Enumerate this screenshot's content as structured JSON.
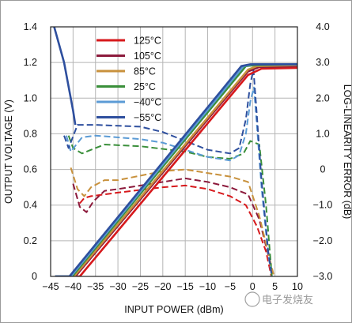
{
  "chart_data": {
    "type": "line",
    "xlabel": "INPUT POWER (dBm)",
    "ylabel": "OUTPUT VOLTAGE (V)",
    "y2label": "LOG-LINEARITY ERROR (dB)",
    "xlim": [
      -45,
      10
    ],
    "ylim": [
      0,
      1.4
    ],
    "y2lim": [
      -3.0,
      4.0
    ],
    "grid": true,
    "legend": "top-left",
    "x_ticks": [
      "−45",
      "−40",
      "−35",
      "−30",
      "−25",
      "−20",
      "−15",
      "−10",
      "−5",
      "0",
      "5",
      "10"
    ],
    "y_ticks": [
      "0",
      "0.2",
      "0.4",
      "0.6",
      "0.8",
      "1.0",
      "1.2",
      "1.4"
    ],
    "y2_ticks": [
      "−3.0",
      "−2.0",
      "−1.0",
      "0",
      "1.0",
      "2.0",
      "3.0",
      "4.0"
    ],
    "x_tick_values": [
      -45,
      -40,
      -35,
      -30,
      -25,
      -20,
      -15,
      -10,
      -5,
      0,
      5,
      10
    ],
    "y_tick_values": [
      0,
      0.2,
      0.4,
      0.6,
      0.8,
      1.0,
      1.2,
      1.4
    ],
    "y2_tick_values": [
      -3,
      -2,
      -1,
      0,
      1,
      2,
      3,
      4
    ],
    "series": [
      {
        "name": "125°C",
        "color": "#d7191c",
        "voltage": [
          [
            -44,
            0
          ],
          [
            -38.5,
            0
          ],
          [
            -1,
            1.13
          ],
          [
            2,
            1.165
          ],
          [
            10,
            1.17
          ]
        ],
        "error": [
          [
            -38.5,
            -0.95
          ],
          [
            -37.5,
            -0.8
          ],
          [
            -36,
            -0.75
          ],
          [
            -30,
            -0.65
          ],
          [
            -20,
            -0.5
          ],
          [
            -15,
            -0.45
          ],
          [
            -10,
            -0.55
          ],
          [
            -5,
            -0.75
          ],
          [
            -1.5,
            -1.0
          ],
          [
            1,
            -1.6
          ],
          [
            3,
            -2.3
          ],
          [
            4.2,
            -3.0
          ]
        ]
      },
      {
        "name": "105°C",
        "color": "#8c1a3c",
        "voltage": [
          [
            -44,
            0
          ],
          [
            -39.5,
            0
          ],
          [
            -1,
            1.15
          ],
          [
            1.5,
            1.175
          ],
          [
            10,
            1.18
          ]
        ],
        "error": [
          [
            -40,
            -0.4
          ],
          [
            -38.5,
            -1.05
          ],
          [
            -37,
            -1.2
          ],
          [
            -35.5,
            -0.9
          ],
          [
            -33,
            -0.6
          ],
          [
            -30,
            -0.55
          ],
          [
            -20,
            -0.35
          ],
          [
            -15,
            -0.25
          ],
          [
            -10,
            -0.35
          ],
          [
            -5,
            -0.5
          ],
          [
            -1,
            -0.7
          ],
          [
            1.5,
            -1.4
          ],
          [
            3.5,
            -2.4
          ],
          [
            4.5,
            -3.0
          ]
        ]
      },
      {
        "name": "85°C",
        "color": "#c8913c",
        "voltage": [
          [
            -44,
            0
          ],
          [
            -39.8,
            0
          ],
          [
            -1,
            1.16
          ],
          [
            1,
            1.18
          ],
          [
            10,
            1.185
          ]
        ],
        "error": [
          [
            -40.5,
            0.05
          ],
          [
            -39,
            -0.55
          ],
          [
            -37.5,
            -0.75
          ],
          [
            -36,
            -0.5
          ],
          [
            -33,
            -0.3
          ],
          [
            -30,
            -0.3
          ],
          [
            -20,
            -0.05
          ],
          [
            -15,
            0.0
          ],
          [
            -10,
            -0.1
          ],
          [
            -5,
            -0.2
          ],
          [
            -1,
            -0.35
          ],
          [
            1.5,
            -1.3
          ],
          [
            3.8,
            -2.5
          ],
          [
            4.8,
            -3.0
          ]
        ]
      },
      {
        "name": "25°C",
        "color": "#3a8f3a",
        "voltage": [
          [
            -44,
            0
          ],
          [
            -40.2,
            0
          ],
          [
            -1.5,
            1.18
          ],
          [
            0.5,
            1.185
          ],
          [
            10,
            1.19
          ]
        ],
        "error": [
          [
            -41,
            0.95
          ],
          [
            -40,
            0.6
          ],
          [
            -38,
            0.45
          ],
          [
            -36,
            0.55
          ],
          [
            -33,
            0.7
          ],
          [
            -25,
            0.65
          ],
          [
            -15,
            0.5
          ],
          [
            -10,
            0.35
          ],
          [
            -5,
            0.3
          ],
          [
            -2,
            0.45
          ],
          [
            -0.5,
            0.8
          ],
          [
            0.5,
            0.75
          ],
          [
            1.5,
            0.7
          ],
          [
            3,
            -1.0
          ],
          [
            4.3,
            -3.0
          ]
        ]
      },
      {
        "name": "−40°C",
        "color": "#5b9bd5",
        "voltage": [
          [
            -44,
            0
          ],
          [
            -40.5,
            0
          ],
          [
            -2,
            1.18
          ],
          [
            0,
            1.19
          ],
          [
            10,
            1.19
          ]
        ],
        "error": [
          [
            -41.5,
            0.95
          ],
          [
            -40.5,
            0.5
          ],
          [
            -38,
            0.9
          ],
          [
            -35,
            0.95
          ],
          [
            -25,
            0.85
          ],
          [
            -20,
            0.75
          ],
          [
            -15,
            0.55
          ],
          [
            -10,
            0.35
          ],
          [
            -5,
            0.25
          ],
          [
            -3,
            0.4
          ],
          [
            -1.5,
            1.0
          ],
          [
            -0.5,
            1.9
          ],
          [
            0.3,
            2.3
          ],
          [
            1,
            1.2
          ],
          [
            2,
            -0.5
          ],
          [
            3.5,
            -2.4
          ],
          [
            4.3,
            -3.0
          ]
        ]
      },
      {
        "name": "−55°C",
        "color": "#2e4f9e",
        "voltage": [
          [
            -44,
            0
          ],
          [
            -40.8,
            0
          ],
          [
            -2.5,
            1.18
          ],
          [
            -0.5,
            1.19
          ],
          [
            10,
            1.19
          ]
        ],
        "error": [
          [
            -42,
            0.95
          ],
          [
            -41,
            0.6
          ],
          [
            -39,
            1.25
          ],
          [
            -35,
            1.25
          ],
          [
            -25,
            1.2
          ],
          [
            -20,
            1.05
          ],
          [
            -15,
            0.8
          ],
          [
            -10,
            0.55
          ],
          [
            -5,
            0.45
          ],
          [
            -3,
            0.6
          ],
          [
            -1.5,
            1.4
          ],
          [
            -0.5,
            2.4
          ],
          [
            0.2,
            2.8
          ],
          [
            0.8,
            1.8
          ],
          [
            2,
            -0.3
          ],
          [
            3.5,
            -2.3
          ],
          [
            4.3,
            -3.0
          ]
        ]
      }
    ],
    "left_steep": {
      "color": "#2e4f9e",
      "points": [
        [
          -44.2,
          1.4
        ],
        [
          -42,
          1.2
        ],
        [
          -40,
          0.93
        ],
        [
          -39.5,
          0.85
        ]
      ]
    }
  },
  "watermark": "电子发烧友"
}
